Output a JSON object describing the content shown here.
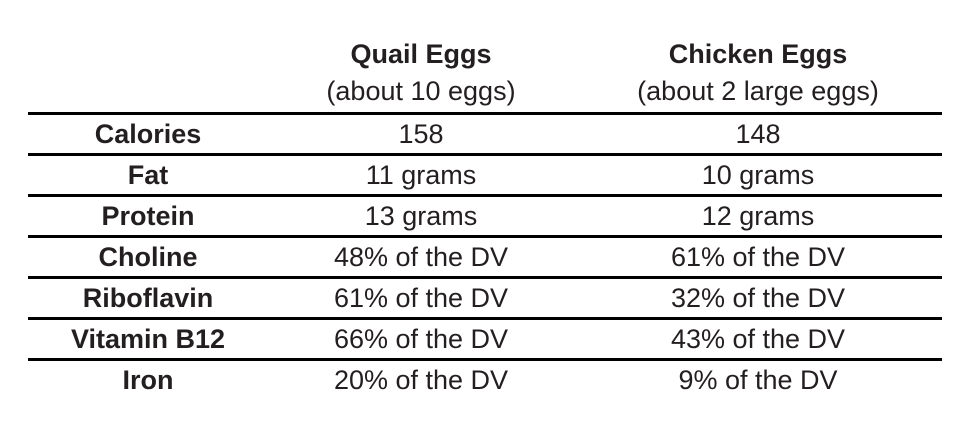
{
  "chart_data": {
    "type": "table",
    "title": "",
    "columns": [
      "",
      "Quail Eggs",
      "Chicken Eggs"
    ],
    "column_subtitles": [
      "",
      "(about 10 eggs)",
      "(about 2 large eggs)"
    ],
    "rows": [
      [
        "Calories",
        "158",
        "148"
      ],
      [
        "Fat",
        "11 grams",
        "10 grams"
      ],
      [
        "Protein",
        "13 grams",
        "12 grams"
      ],
      [
        "Choline",
        "48% of the DV",
        "61% of the DV"
      ],
      [
        "Riboflavin",
        "61% of the DV",
        "32% of the DV"
      ],
      [
        "Vitamin B12",
        "66% of the DV",
        "43% of the DV"
      ],
      [
        "Iron",
        "20% of the DV",
        "9% of the DV"
      ]
    ],
    "layout": {
      "grid": "horizontal-rules-only",
      "rule_after_last_row": false,
      "label_column_bold": true,
      "header_bold_titles": true
    },
    "colors": {
      "text": "#231f20",
      "rule": "#000000",
      "background": "#ffffff"
    }
  }
}
